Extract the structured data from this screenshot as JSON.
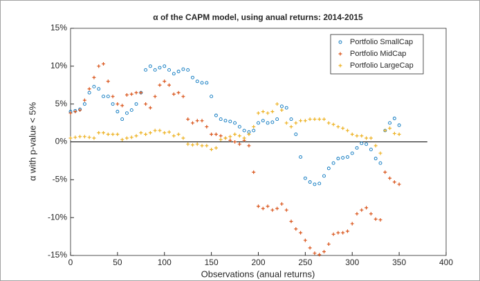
{
  "chart_data": {
    "type": "scatter",
    "title": "α of the CAPM model, using anual returns: 2014-2015",
    "x_label": "Observations (anual returns)",
    "y_label": "α with p-value < 5%",
    "xlim": [
      0,
      400
    ],
    "xticks": [
      0,
      50,
      100,
      150,
      200,
      250,
      300,
      350,
      400
    ],
    "ylim": [
      -15,
      15
    ],
    "yticks": [
      {
        "value": -15,
        "label": "-15%"
      },
      {
        "value": -10,
        "label": "-10%"
      },
      {
        "value": -5,
        "label": "-5%"
      },
      {
        "value": 0,
        "label": "0%"
      },
      {
        "value": 5,
        "label": "5%"
      },
      {
        "value": 10,
        "label": "10%"
      },
      {
        "value": 15,
        "label": "15%"
      }
    ],
    "legend_position": "top-right",
    "reference_line": {
      "y": 0,
      "x": [
        0,
        380
      ]
    },
    "x": [
      0,
      5,
      10,
      15,
      20,
      25,
      30,
      35,
      40,
      45,
      50,
      55,
      60,
      65,
      70,
      75,
      80,
      85,
      90,
      95,
      100,
      105,
      110,
      115,
      120,
      125,
      130,
      135,
      140,
      145,
      150,
      155,
      160,
      165,
      170,
      175,
      180,
      185,
      190,
      195,
      200,
      205,
      210,
      215,
      220,
      225,
      230,
      235,
      240,
      245,
      250,
      255,
      260,
      265,
      270,
      275,
      280,
      285,
      290,
      295,
      300,
      305,
      310,
      315,
      320,
      325,
      330,
      335,
      340,
      345,
      350
    ],
    "series": [
      {
        "name": "Portfolio SmallCap",
        "color": "#0072bd",
        "marker": "o",
        "values": [
          4,
          4.1,
          4.3,
          5,
          6.5,
          7.3,
          7,
          6,
          6,
          5,
          4,
          3,
          3.8,
          4.2,
          5,
          6.5,
          9.5,
          10,
          9.5,
          9.8,
          10,
          9.5,
          9,
          9.3,
          9.6,
          9.5,
          8.5,
          8,
          7.8,
          7.8,
          6,
          3.5,
          3,
          2.8,
          2.7,
          2.5,
          2,
          1.5,
          1.3,
          1.5,
          2.5,
          2.8,
          2.5,
          2.6,
          3,
          4.7,
          4.5,
          3,
          1,
          -2,
          -4.8,
          -5.3,
          -5.6,
          -5.5,
          -4.5,
          -3.5,
          -2.8,
          -2.2,
          -2.1,
          -2,
          -1.5,
          -0.8,
          -0.2,
          -0.3,
          -1,
          -2.2,
          -2.8,
          1.5,
          2.5,
          3.1,
          2.2
        ]
      },
      {
        "name": "Portfolio MidCap",
        "color": "#d95319",
        "marker": "+",
        "values": [
          3.8,
          4,
          4.2,
          5.5,
          7,
          8.5,
          10,
          10.3,
          8,
          6,
          5,
          4.8,
          6.2,
          6.3,
          6.5,
          6.5,
          5,
          4.5,
          6,
          7.5,
          8,
          7.5,
          6.3,
          6.5,
          6,
          3,
          2.5,
          2.8,
          2.8,
          2,
          1,
          1,
          0.8,
          0.5,
          0.2,
          0,
          -0.3,
          0.2,
          -0.5,
          -4,
          -8.5,
          -8.8,
          -8.5,
          -9,
          -8.8,
          -8.2,
          -9,
          -10.5,
          -11.5,
          -12,
          -13,
          -14,
          -14.7,
          -14.9,
          -14.5,
          -13.5,
          -12.2,
          -12,
          -12,
          -11.8,
          -10.8,
          -9.5,
          -9,
          -8.7,
          -9.5,
          -10.2,
          -10.3,
          -4,
          -4.8,
          -5.3,
          -5.6
        ]
      },
      {
        "name": "Portfolio LargeCap",
        "color": "#edb120",
        "marker": "+",
        "values": [
          0.5,
          0.6,
          0.7,
          0.7,
          0.6,
          0.5,
          1.2,
          1.2,
          1,
          1,
          1,
          0.3,
          0.5,
          0.6,
          0.8,
          1.2,
          1,
          1.2,
          1.5,
          1.5,
          1.2,
          1.3,
          0.8,
          1,
          0.5,
          -0.3,
          -0.4,
          -0.3,
          -0.5,
          -0.5,
          -1,
          -0.8,
          0.3,
          0.5,
          0.7,
          1,
          0.8,
          0.5,
          1,
          2,
          3.8,
          4,
          3.8,
          4,
          5,
          4.2,
          2.5,
          2,
          2.5,
          2.8,
          2.8,
          3,
          3,
          3,
          3,
          2.5,
          2.3,
          2,
          1.8,
          1.5,
          1,
          0.8,
          0.8,
          0.5,
          0.5,
          -0.5,
          -1.5,
          1.5,
          1.8,
          1.1,
          1
        ]
      }
    ]
  }
}
